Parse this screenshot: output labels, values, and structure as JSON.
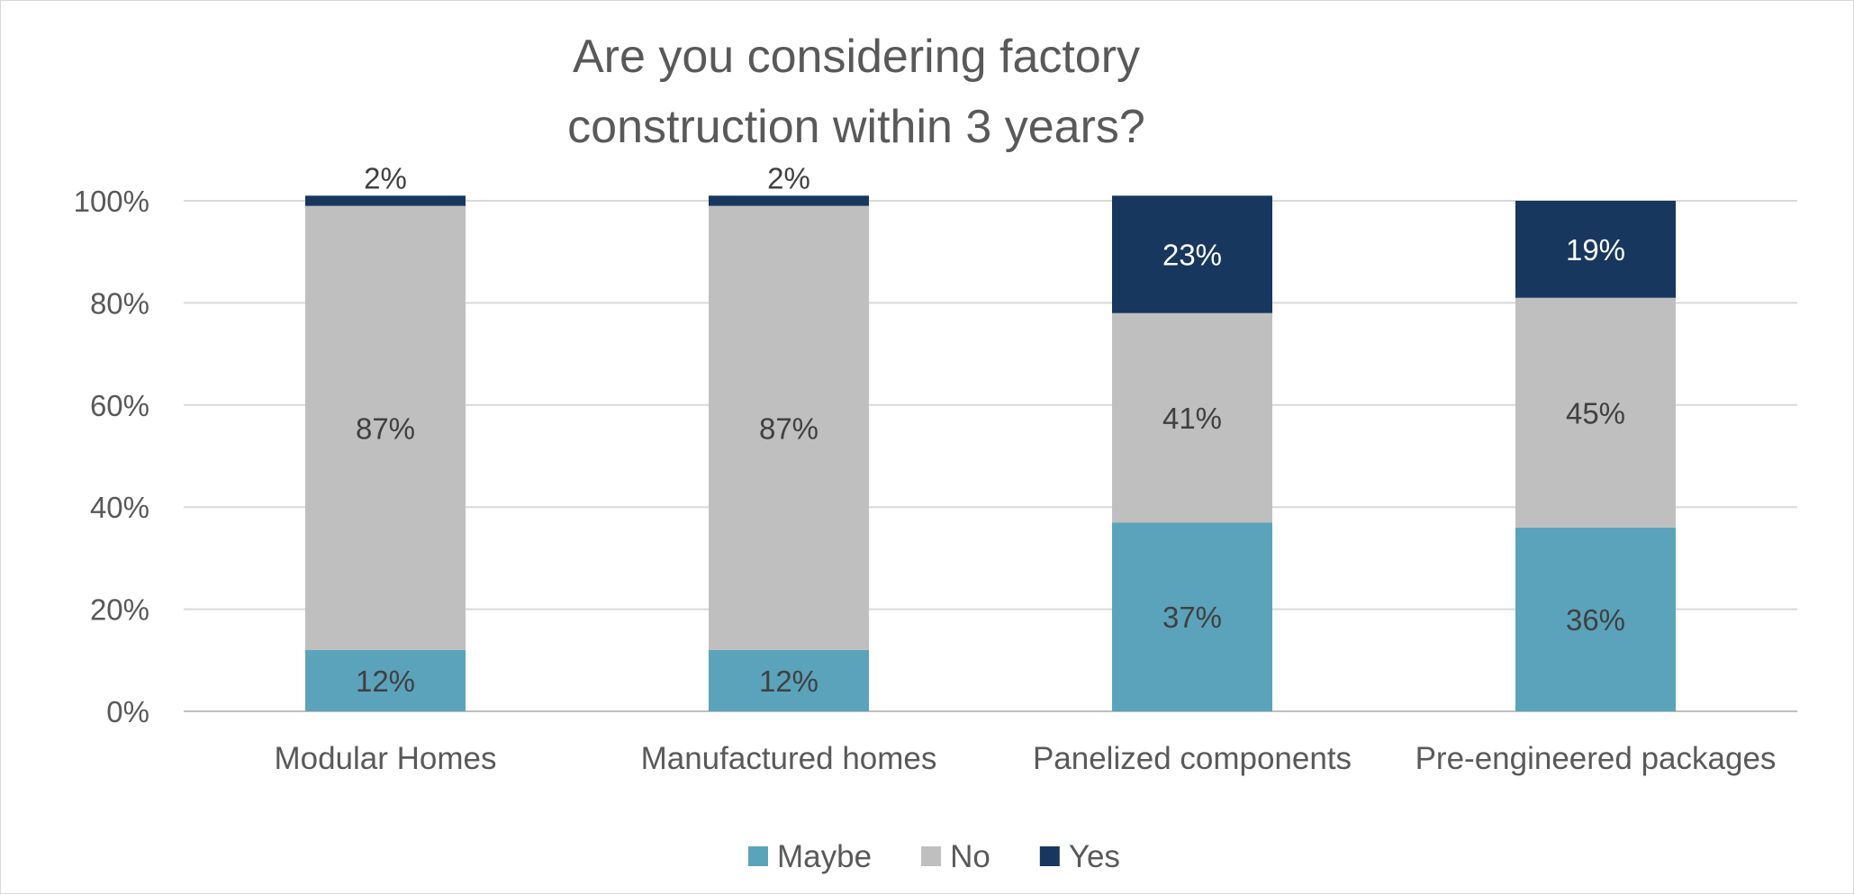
{
  "chart_data": {
    "type": "bar",
    "stacked": true,
    "title_lines": [
      "Are you considering factory",
      "construction within 3 years?"
    ],
    "categories": [
      "Modular Homes",
      "Manufactured homes",
      "Panelized components",
      "Pre-engineered packages"
    ],
    "series": [
      {
        "name": "Maybe",
        "color": "#5ba3bb",
        "label_color": "#404040",
        "values": [
          12,
          12,
          37,
          36
        ]
      },
      {
        "name": "No",
        "color": "#bfbfbf",
        "label_color": "#404040",
        "values": [
          87,
          87,
          41,
          45
        ]
      },
      {
        "name": "Yes",
        "color": "#17375e",
        "label_color": "#ffffff",
        "values": [
          2,
          2,
          23,
          19
        ]
      }
    ],
    "small_value_label_color": "#404040",
    "y_ticks": [
      "0%",
      "20%",
      "40%",
      "60%",
      "80%",
      "100%"
    ],
    "ylim": [
      0,
      100
    ],
    "grid": true,
    "legend": "bottom"
  }
}
